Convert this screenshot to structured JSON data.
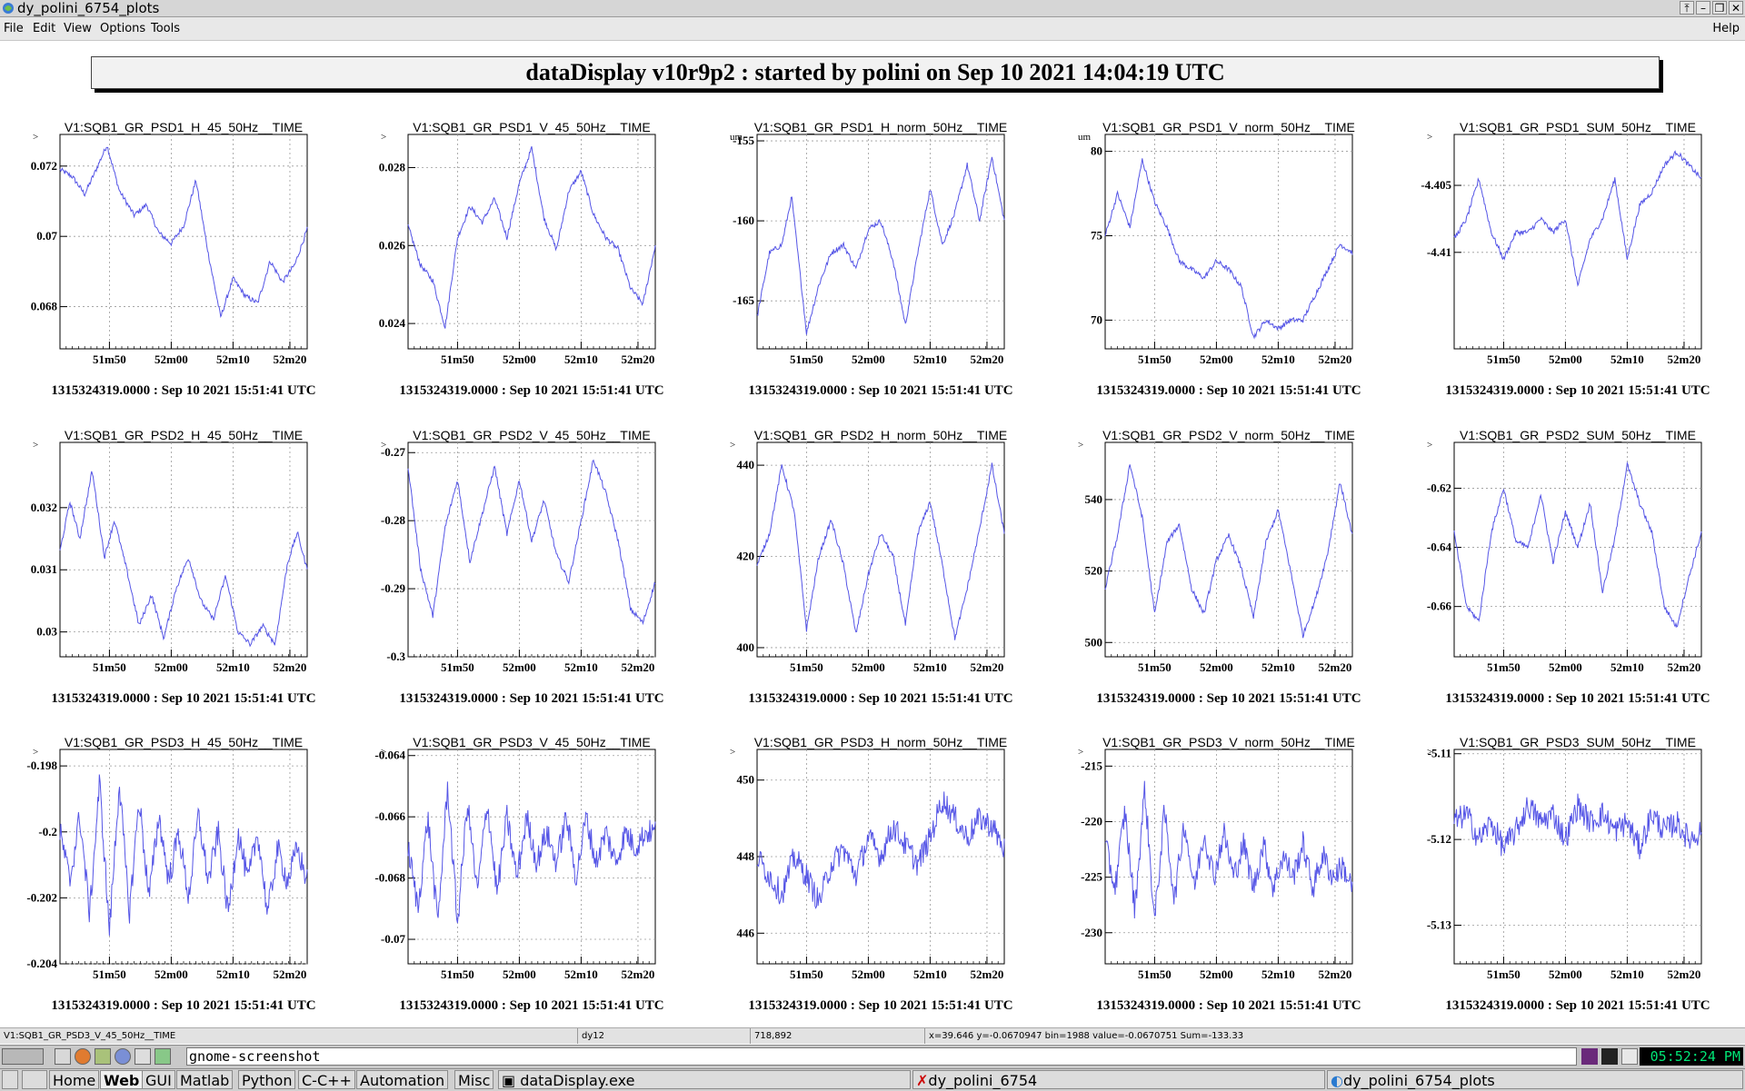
{
  "window": {
    "title": "dy_polini_6754_plots"
  },
  "menu": {
    "items": [
      "File",
      "Edit",
      "View",
      "Options",
      "Tools"
    ],
    "help": "Help"
  },
  "banner": "dataDisplay v10r9p2 : started by polini on Sep 10 2021 14:04:19 UTC",
  "colors": {
    "trace": "#5555e6",
    "grid": "#9a9a9a"
  },
  "chart_data": [
    {
      "type": "line",
      "title": "V1:SQB1_GR_PSD1_H_45_50Hz__TIME",
      "ylabel": ">",
      "ylim": [
        0.0668,
        0.0729
      ],
      "yticks": [
        0.068,
        0.07,
        0.072
      ],
      "yticklabels": [
        "0.068",
        "0.07",
        "0.072"
      ],
      "xticks": [
        "51m50",
        "52m00",
        "52m10",
        "52m20"
      ],
      "footer": "1315324319.0000 : Sep 10 2021 15:51:41 UTC",
      "noise": "low",
      "x": [
        0,
        0.05,
        0.1,
        0.14,
        0.19,
        0.24,
        0.3,
        0.35,
        0.4,
        0.45,
        0.5,
        0.55,
        0.6,
        0.65,
        0.7,
        0.75,
        0.8,
        0.85,
        0.9,
        0.95,
        1
      ],
      "y": [
        0.0719,
        0.0717,
        0.0712,
        0.0718,
        0.0726,
        0.0713,
        0.0706,
        0.0709,
        0.0701,
        0.0698,
        0.0703,
        0.0716,
        0.0695,
        0.0677,
        0.0688,
        0.0683,
        0.0681,
        0.0693,
        0.0687,
        0.0692,
        0.0702
      ]
    },
    {
      "type": "line",
      "title": "V1:SQB1_GR_PSD1_V_45_50Hz__TIME",
      "ylabel": ">",
      "ylim": [
        0.02335,
        0.02885
      ],
      "yticks": [
        0.024,
        0.026,
        0.028
      ],
      "yticklabels": [
        "0.024",
        "0.026",
        "0.028"
      ],
      "xticks": [
        "51m50",
        "52m00",
        "52m10",
        "52m20"
      ],
      "footer": "1315324319.0000 : Sep 10 2021 15:51:41 UTC",
      "noise": "low",
      "x": [
        0,
        0.05,
        0.1,
        0.15,
        0.2,
        0.25,
        0.3,
        0.35,
        0.4,
        0.45,
        0.5,
        0.55,
        0.6,
        0.65,
        0.7,
        0.75,
        0.8,
        0.85,
        0.9,
        0.95,
        1
      ],
      "y": [
        0.0265,
        0.0255,
        0.0251,
        0.0239,
        0.0262,
        0.027,
        0.0266,
        0.0272,
        0.0262,
        0.0276,
        0.0285,
        0.0267,
        0.0259,
        0.0274,
        0.0279,
        0.0268,
        0.0262,
        0.0259,
        0.0249,
        0.0245,
        0.026
      ]
    },
    {
      "type": "line",
      "title": "V1:SQB1_GR_PSD1_H_norm_50Hz__TIME",
      "ylabel": "um",
      "ylim": [
        -168,
        -154.6
      ],
      "yticks": [
        -165,
        -160,
        -155
      ],
      "yticklabels": [
        "-165",
        "-160",
        "-155"
      ],
      "xticks": [
        "51m50",
        "52m00",
        "52m10",
        "52m20"
      ],
      "footer": "1315324319.0000 : Sep 10 2021 15:51:41 UTC",
      "noise": "low",
      "x": [
        0,
        0.05,
        0.1,
        0.14,
        0.2,
        0.25,
        0.3,
        0.35,
        0.4,
        0.45,
        0.5,
        0.55,
        0.6,
        0.65,
        0.7,
        0.75,
        0.8,
        0.85,
        0.9,
        0.95,
        1
      ],
      "y": [
        -166,
        -162,
        -161.5,
        -158.5,
        -167,
        -164,
        -162,
        -161.5,
        -163,
        -160.5,
        -160,
        -162.5,
        -166.5,
        -162,
        -158,
        -161.5,
        -159.5,
        -156.5,
        -160,
        -156,
        -160
      ]
    },
    {
      "type": "line",
      "title": "V1:SQB1_GR_PSD1_V_norm_50Hz__TIME",
      "ylabel": "um",
      "ylim": [
        68.3,
        81
      ],
      "yticks": [
        70,
        75,
        80
      ],
      "yticklabels": [
        "70",
        "75",
        "80"
      ],
      "xticks": [
        "51m50",
        "52m00",
        "52m10",
        "52m20"
      ],
      "footer": "1315324319.0000 : Sep 10 2021 15:51:41 UTC",
      "noise": "low",
      "x": [
        0,
        0.05,
        0.1,
        0.15,
        0.2,
        0.25,
        0.3,
        0.35,
        0.4,
        0.45,
        0.5,
        0.55,
        0.6,
        0.65,
        0.7,
        0.75,
        0.8,
        0.85,
        0.9,
        0.95,
        1
      ],
      "y": [
        75,
        77.5,
        75.5,
        79.5,
        77,
        75.5,
        73.5,
        73,
        72.5,
        73.5,
        73,
        72,
        69,
        70,
        69.5,
        70,
        70,
        71.5,
        73,
        74.5,
        74
      ]
    },
    {
      "type": "line",
      "title": "V1:SQB1_GR_PSD1_SUM_50Hz__TIME",
      "ylabel": ">",
      "ylim": [
        -4.4172,
        -4.4012
      ],
      "yticks": [
        -4.41,
        -4.405
      ],
      "yticklabels": [
        "-4.41",
        "-4.405"
      ],
      "xticks": [
        "51m50",
        "52m00",
        "52m10",
        "52m20"
      ],
      "footer": "1315324319.0000 : Sep 10 2021 15:51:41 UTC",
      "noise": "low",
      "x": [
        0,
        0.05,
        0.1,
        0.15,
        0.2,
        0.25,
        0.3,
        0.35,
        0.4,
        0.45,
        0.5,
        0.55,
        0.6,
        0.65,
        0.7,
        0.75,
        0.8,
        0.85,
        0.9,
        0.95,
        1
      ],
      "y": [
        -4.409,
        -4.4075,
        -4.4045,
        -4.4085,
        -4.4105,
        -4.4085,
        -4.4085,
        -4.4075,
        -4.4085,
        -4.4075,
        -4.4125,
        -4.409,
        -4.4075,
        -4.4045,
        -4.4105,
        -4.4065,
        -4.4055,
        -4.4035,
        -4.4025,
        -4.4035,
        -4.4045
      ]
    },
    {
      "type": "line",
      "title": "V1:SQB1_GR_PSD2_H_45_50Hz__TIME",
      "ylabel": ">",
      "ylim": [
        0.0296,
        0.03305
      ],
      "yticks": [
        0.03,
        0.031,
        0.032
      ],
      "yticklabels": [
        "0.03",
        "0.031",
        "0.032"
      ],
      "xticks": [
        "51m50",
        "52m00",
        "52m10",
        "52m20"
      ],
      "footer": "1315324319.0000 : Sep 10 2021 15:51:41 UTC",
      "noise": "low",
      "x": [
        0,
        0.04,
        0.08,
        0.13,
        0.18,
        0.22,
        0.27,
        0.32,
        0.37,
        0.42,
        0.47,
        0.52,
        0.57,
        0.62,
        0.67,
        0.72,
        0.77,
        0.82,
        0.87,
        0.92,
        0.96,
        1
      ],
      "y": [
        0.0313,
        0.0321,
        0.0315,
        0.0326,
        0.0312,
        0.0318,
        0.031,
        0.0301,
        0.0306,
        0.0299,
        0.0307,
        0.0312,
        0.0305,
        0.0302,
        0.0309,
        0.03,
        0.0298,
        0.0301,
        0.0298,
        0.0311,
        0.0316,
        0.031
      ]
    },
    {
      "type": "line",
      "title": "V1:SQB1_GR_PSD2_V_45_50Hz__TIME",
      "ylabel": ">",
      "ylim": [
        -0.3,
        -0.2685
      ],
      "yticks": [
        -0.3,
        -0.29,
        -0.28,
        -0.27
      ],
      "yticklabels": [
        "-0.3",
        "-0.29",
        "-0.28",
        "-0.27"
      ],
      "xticks": [
        "51m50",
        "52m00",
        "52m10",
        "52m20"
      ],
      "footer": "1315324319.0000 : Sep 10 2021 15:51:41 UTC",
      "noise": "low",
      "x": [
        0,
        0.05,
        0.1,
        0.15,
        0.2,
        0.25,
        0.3,
        0.35,
        0.4,
        0.45,
        0.5,
        0.55,
        0.6,
        0.65,
        0.7,
        0.75,
        0.8,
        0.85,
        0.9,
        0.95,
        1
      ],
      "y": [
        -0.272,
        -0.287,
        -0.294,
        -0.281,
        -0.274,
        -0.286,
        -0.279,
        -0.272,
        -0.282,
        -0.274,
        -0.283,
        -0.277,
        -0.285,
        -0.289,
        -0.28,
        -0.271,
        -0.276,
        -0.283,
        -0.293,
        -0.295,
        -0.289
      ]
    },
    {
      "type": "line",
      "title": "V1:SQB1_GR_PSD2_H_norm_50Hz__TIME",
      "ylabel": ">",
      "ylim": [
        398,
        445
      ],
      "yticks": [
        400,
        420,
        440
      ],
      "yticklabels": [
        "400",
        "420",
        "440"
      ],
      "xticks": [
        "51m50",
        "52m00",
        "52m10",
        "52m20"
      ],
      "footer": "1315324319.0000 : Sep 10 2021 15:51:41 UTC",
      "noise": "low",
      "x": [
        0,
        0.05,
        0.1,
        0.15,
        0.2,
        0.25,
        0.3,
        0.35,
        0.4,
        0.45,
        0.5,
        0.55,
        0.6,
        0.65,
        0.7,
        0.75,
        0.8,
        0.85,
        0.9,
        0.95,
        1
      ],
      "y": [
        418,
        425,
        440,
        430,
        404,
        420,
        428,
        418,
        403,
        416,
        425,
        420,
        405,
        425,
        432,
        418,
        402,
        413,
        426,
        440,
        425
      ]
    },
    {
      "type": "line",
      "title": "V1:SQB1_GR_PSD2_V_norm_50Hz__TIME",
      "ylabel": ">",
      "ylim": [
        496,
        556
      ],
      "yticks": [
        500,
        520,
        540
      ],
      "yticklabels": [
        "500",
        "520",
        "540"
      ],
      "xticks": [
        "51m50",
        "52m00",
        "52m10",
        "52m20"
      ],
      "footer": "1315324319.0000 : Sep 10 2021 15:51:41 UTC",
      "noise": "low",
      "x": [
        0,
        0.05,
        0.1,
        0.15,
        0.2,
        0.25,
        0.3,
        0.35,
        0.4,
        0.45,
        0.5,
        0.55,
        0.6,
        0.65,
        0.7,
        0.75,
        0.8,
        0.85,
        0.9,
        0.95,
        1
      ],
      "y": [
        515,
        530,
        550,
        535,
        508,
        528,
        533,
        515,
        508,
        523,
        530,
        521,
        507,
        528,
        537,
        520,
        502,
        512,
        525,
        545,
        530
      ]
    },
    {
      "type": "line",
      "title": "V1:SQB1_GR_PSD2_SUM_50Hz__TIME",
      "ylabel": ">",
      "ylim": [
        -0.677,
        -0.6045
      ],
      "yticks": [
        -0.66,
        -0.64,
        -0.62
      ],
      "yticklabels": [
        "-0.66",
        "-0.64",
        "-0.62"
      ],
      "xticks": [
        "51m50",
        "52m00",
        "52m10",
        "52m20"
      ],
      "footer": "1315324319.0000 : Sep 10 2021 15:51:41 UTC",
      "noise": "low",
      "x": [
        0,
        0.05,
        0.1,
        0.15,
        0.2,
        0.25,
        0.3,
        0.35,
        0.4,
        0.45,
        0.5,
        0.55,
        0.6,
        0.65,
        0.7,
        0.75,
        0.8,
        0.85,
        0.9,
        0.95,
        1
      ],
      "y": [
        -0.635,
        -0.66,
        -0.665,
        -0.635,
        -0.62,
        -0.638,
        -0.64,
        -0.622,
        -0.645,
        -0.628,
        -0.64,
        -0.625,
        -0.655,
        -0.637,
        -0.612,
        -0.625,
        -0.635,
        -0.66,
        -0.667,
        -0.65,
        -0.635
      ]
    },
    {
      "type": "line",
      "title": "V1:SQB1_GR_PSD3_H_45_50Hz__TIME",
      "ylabel": ">",
      "ylim": [
        -0.204,
        -0.1975
      ],
      "yticks": [
        -0.204,
        -0.202,
        -0.2,
        -0.198
      ],
      "yticklabels": [
        "-0.204",
        "-0.202",
        "-0.2",
        "-0.198"
      ],
      "xticks": [
        "51m50",
        "52m00",
        "52m10",
        "52m20"
      ],
      "footer": "1315324319.0000 : Sep 10 2021 15:51:41 UTC",
      "noise": "high",
      "x": [
        0,
        0.04,
        0.08,
        0.12,
        0.16,
        0.2,
        0.24,
        0.28,
        0.32,
        0.36,
        0.4,
        0.44,
        0.48,
        0.52,
        0.56,
        0.6,
        0.64,
        0.68,
        0.72,
        0.76,
        0.8,
        0.84,
        0.88,
        0.92,
        0.96,
        1
      ],
      "y": [
        -0.2,
        -0.2015,
        -0.1995,
        -0.2025,
        -0.1985,
        -0.203,
        -0.1985,
        -0.2025,
        -0.199,
        -0.202,
        -0.1995,
        -0.2015,
        -0.2,
        -0.202,
        -0.1995,
        -0.2015,
        -0.2,
        -0.2025,
        -0.2,
        -0.2015,
        -0.2,
        -0.2025,
        -0.2005,
        -0.2015,
        -0.2005,
        -0.2015
      ]
    },
    {
      "type": "line",
      "title": "V1:SQB1_GR_PSD3_V_45_50Hz__TIME",
      "ylabel": ">",
      "ylim": [
        -0.0708,
        -0.0638
      ],
      "yticks": [
        -0.07,
        -0.068,
        -0.066,
        -0.064
      ],
      "yticklabels": [
        "-0.07",
        "-0.068",
        "-0.066",
        "-0.064"
      ],
      "xticks": [
        "51m50",
        "52m00",
        "52m10",
        "52m20"
      ],
      "footer": "1315324319.0000 : Sep 10 2021 15:51:41 UTC",
      "noise": "high",
      "x": [
        0,
        0.04,
        0.08,
        0.12,
        0.16,
        0.2,
        0.24,
        0.28,
        0.32,
        0.36,
        0.4,
        0.44,
        0.48,
        0.52,
        0.56,
        0.6,
        0.64,
        0.68,
        0.72,
        0.76,
        0.8,
        0.84,
        0.88,
        0.92,
        0.96,
        1
      ],
      "y": [
        -0.067,
        -0.069,
        -0.066,
        -0.0695,
        -0.065,
        -0.0695,
        -0.0655,
        -0.0685,
        -0.0655,
        -0.0685,
        -0.066,
        -0.068,
        -0.066,
        -0.0675,
        -0.0665,
        -0.0675,
        -0.066,
        -0.068,
        -0.066,
        -0.0675,
        -0.0665,
        -0.0675,
        -0.0665,
        -0.067,
        -0.0665,
        -0.0665
      ]
    },
    {
      "type": "line",
      "title": "V1:SQB1_GR_PSD3_H_norm_50Hz__TIME",
      "ylabel": ">",
      "ylim": [
        445.2,
        450.8
      ],
      "yticks": [
        446,
        448,
        450
      ],
      "yticklabels": [
        "446",
        "448",
        "450"
      ],
      "xticks": [
        "51m50",
        "52m00",
        "52m10",
        "52m20"
      ],
      "footer": "1315324319.0000 : Sep 10 2021 15:51:41 UTC",
      "noise": "high",
      "x": [
        0,
        0.05,
        0.1,
        0.15,
        0.2,
        0.25,
        0.3,
        0.35,
        0.4,
        0.45,
        0.5,
        0.55,
        0.6,
        0.65,
        0.7,
        0.75,
        0.8,
        0.85,
        0.9,
        0.95,
        1
      ],
      "y": [
        448,
        447.5,
        447,
        448,
        447.5,
        446.8,
        447.8,
        448.2,
        447.5,
        448.5,
        448,
        448.8,
        448.3,
        447.8,
        448.5,
        449.5,
        449,
        448.5,
        449,
        448.8,
        448.2
      ]
    },
    {
      "type": "line",
      "title": "V1:SQB1_GR_PSD3_V_norm_50Hz__TIME",
      "ylabel": ">",
      "ylim": [
        -232.8,
        -213.5
      ],
      "yticks": [
        -230,
        -225,
        -220,
        -215
      ],
      "yticklabels": [
        "-230",
        "-225",
        "-220",
        "-215"
      ],
      "xticks": [
        "51m50",
        "52m00",
        "52m10",
        "52m20"
      ],
      "footer": "1315324319.0000 : Sep 10 2021 15:51:41 UTC",
      "noise": "high",
      "x": [
        0,
        0.04,
        0.08,
        0.12,
        0.16,
        0.2,
        0.24,
        0.28,
        0.32,
        0.36,
        0.4,
        0.44,
        0.48,
        0.52,
        0.56,
        0.6,
        0.64,
        0.68,
        0.72,
        0.76,
        0.8,
        0.84,
        0.88,
        0.92,
        0.96,
        1
      ],
      "y": [
        -222,
        -226,
        -219,
        -228,
        -217,
        -229,
        -219,
        -227,
        -220,
        -226,
        -221,
        -225,
        -221,
        -225,
        -222,
        -226,
        -222,
        -226,
        -223,
        -225,
        -222,
        -226,
        -223,
        -225,
        -224,
        -226
      ]
    },
    {
      "type": "line",
      "title": "V1:SQB1_GR_PSD3_SUM_50Hz__TIME",
      "ylabel": ">",
      "ylim": [
        -5.1345,
        -5.1095
      ],
      "yticks": [
        -5.13,
        -5.12,
        -5.11
      ],
      "yticklabels": [
        "-5.13",
        "-5.12",
        "-5.11"
      ],
      "xticks": [
        "51m50",
        "52m00",
        "52m10",
        "52m20"
      ],
      "footer": "1315324319.0000 : Sep 10 2021 15:51:41 UTC",
      "noise": "high",
      "x": [
        0,
        0.05,
        0.1,
        0.15,
        0.2,
        0.25,
        0.3,
        0.35,
        0.4,
        0.45,
        0.5,
        0.55,
        0.6,
        0.65,
        0.7,
        0.75,
        0.8,
        0.85,
        0.9,
        0.95,
        1
      ],
      "y": [
        -5.118,
        -5.117,
        -5.12,
        -5.118,
        -5.121,
        -5.119,
        -5.116,
        -5.118,
        -5.117,
        -5.12,
        -5.116,
        -5.118,
        -5.117,
        -5.119,
        -5.118,
        -5.121,
        -5.117,
        -5.119,
        -5.118,
        -5.12,
        -5.119
      ]
    }
  ],
  "statusbar": {
    "object": "V1:SQB1_GR_PSD3_V_45_50Hz__TIME",
    "pad": "dy12",
    "coords": "718,892",
    "info": "x=39.646 y=-0.0670947 bin=1988 value=-0.0670751 Sum=-133.33"
  },
  "panel": {
    "command": "gnome-screenshot",
    "clock": "05:52:24 PM"
  },
  "taskbar": {
    "items": [
      "Home",
      "Web",
      "GUI",
      "Matlab",
      "Python",
      "C-C++",
      "Automation",
      "Misc"
    ],
    "active": "Web",
    "tasks": [
      "dataDisplay.exe",
      "dy_polini_6754",
      "dy_polini_6754_plots"
    ]
  }
}
